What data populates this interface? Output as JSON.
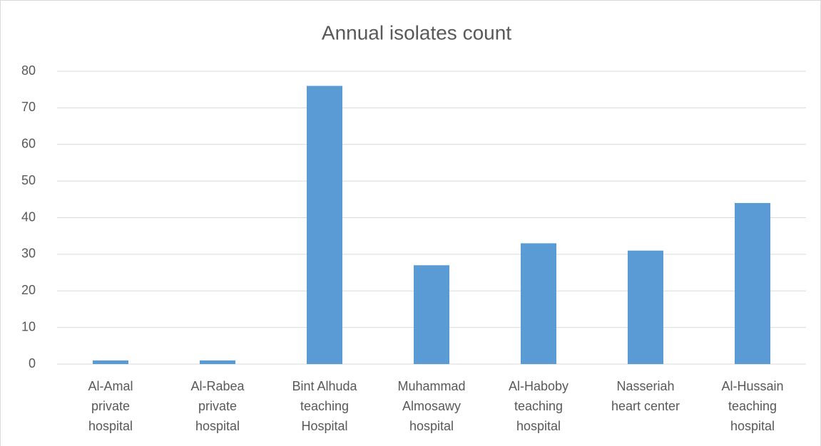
{
  "chart_data": {
    "type": "bar",
    "title": "Annual isolates count",
    "categories": [
      "Al-Amal private hospital",
      "Al-Rabea private hospital",
      "Bint Alhuda teaching Hospital",
      "Muhammad Almosawy hospital",
      "Al-Haboby teaching hospital",
      "Nasseriah heart center",
      "Al-Hussain teaching hospital"
    ],
    "values": [
      1,
      1,
      76,
      27,
      33,
      31,
      44
    ],
    "color": "#5b9bd5",
    "ylim": [
      0,
      80
    ],
    "yticks": [
      0,
      10,
      20,
      30,
      40,
      50,
      60,
      70,
      80
    ],
    "grid": true
  }
}
